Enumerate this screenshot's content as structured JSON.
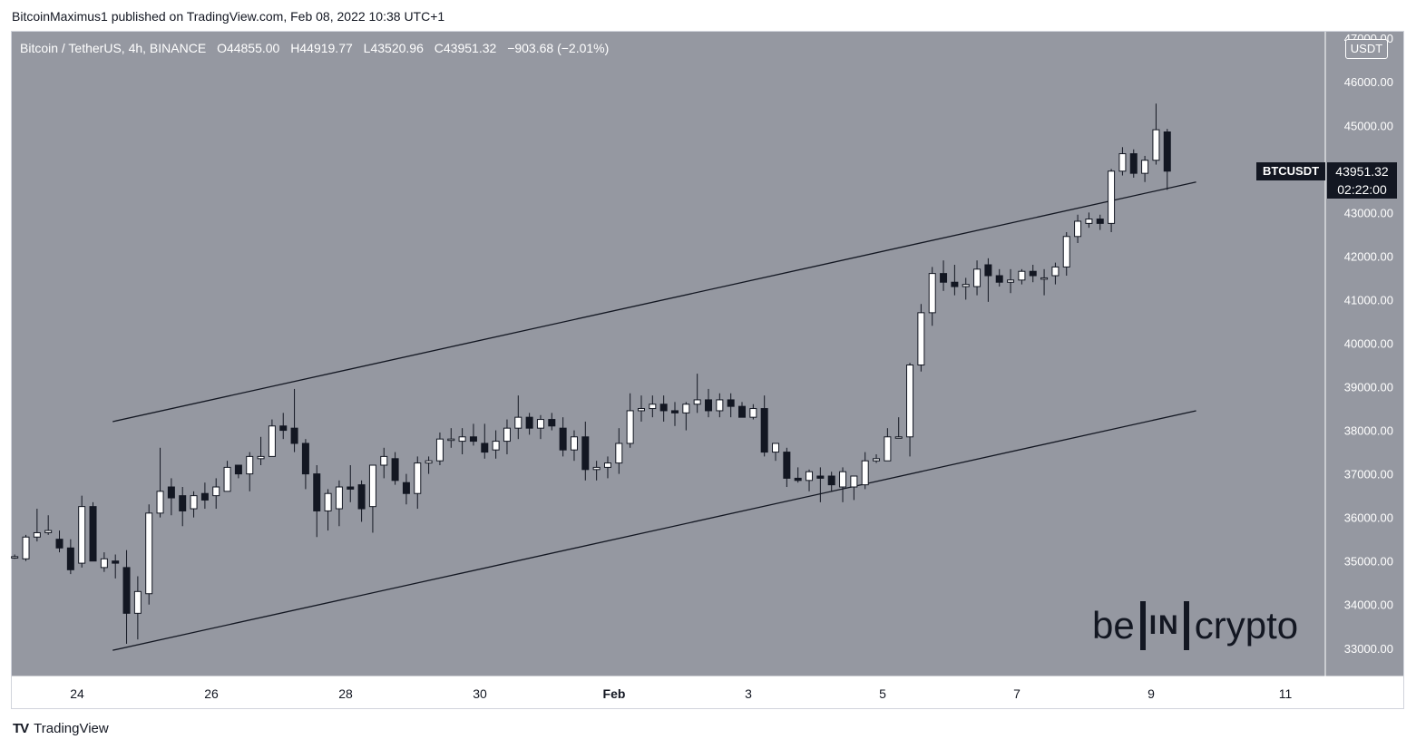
{
  "publisher_line": "BitcoinMaximus1 published on TradingView.com, Feb 08, 2022 10:38 UTC+1",
  "footer_brand": "TradingView",
  "watermark": {
    "left": "be",
    "box": "IN",
    "right": "crypto"
  },
  "header": {
    "instrument": "Bitcoin / TetherUS, 4h, BINANCE",
    "open_label": "O",
    "open": "44855.00",
    "high_label": "H",
    "high": "44919.77",
    "low_label": "L",
    "low": "43520.96",
    "close_label": "C",
    "close": "43951.32",
    "change": "−903.68 (−2.01%)"
  },
  "price_axis_unit": "USDT",
  "symbol_badge": "BTCUSDT",
  "last_price": "43951.32",
  "countdown": "02:22:00",
  "colors": {
    "background": "#9598a1",
    "bull_body": "#ffffff",
    "bear_body": "#131722",
    "wick": "#131722",
    "trendline": "#131722"
  },
  "chart_data": {
    "type": "candlestick",
    "timeframe": "4h",
    "y_ticks": [
      "47000.00",
      "46000.00",
      "45000.00",
      "44000.00",
      "43000.00",
      "42000.00",
      "41000.00",
      "40000.00",
      "39000.00",
      "38000.00",
      "37000.00",
      "36000.00",
      "35000.00",
      "34000.00",
      "33000.00"
    ],
    "ylim": [
      32350,
      47150
    ],
    "x_ticks": [
      {
        "label": "24",
        "day": 24
      },
      {
        "label": "26",
        "day": 26
      },
      {
        "label": "28",
        "day": 28
      },
      {
        "label": "30",
        "day": 30
      },
      {
        "label": "Feb",
        "day": 32
      },
      {
        "label": "3",
        "day": 34
      },
      {
        "label": "5",
        "day": 36
      },
      {
        "label": "7",
        "day": 38
      },
      {
        "label": "9",
        "day": 40
      },
      {
        "label": "11",
        "day": 42
      }
    ],
    "x_axis_note": "day index: Jan 24 = 24, Feb 1 = 32",
    "first_candle_day": 23.07,
    "candle_step_days": 0.1667,
    "candles": [
      [
        35100,
        35150,
        35050,
        35100
      ],
      [
        35050,
        35600,
        35000,
        35550
      ],
      [
        35550,
        36200,
        35450,
        35650
      ],
      [
        35650,
        36050,
        35600,
        35700
      ],
      [
        35500,
        35700,
        35200,
        35300
      ],
      [
        35300,
        35500,
        34700,
        34800
      ],
      [
        34950,
        36500,
        34850,
        36250
      ],
      [
        36250,
        36350,
        35050,
        35000
      ],
      [
        34850,
        35200,
        34750,
        35050
      ],
      [
        35000,
        35150,
        34600,
        34950
      ],
      [
        34850,
        35250,
        33100,
        33800
      ],
      [
        33800,
        34650,
        33200,
        34300
      ],
      [
        34250,
        36300,
        34000,
        36100
      ],
      [
        36100,
        37600,
        36000,
        36600
      ],
      [
        36700,
        36900,
        36050,
        36450
      ],
      [
        36500,
        36700,
        35800,
        36150
      ],
      [
        36200,
        36600,
        36000,
        36500
      ],
      [
        36550,
        36800,
        36200,
        36400
      ],
      [
        36500,
        36900,
        36200,
        36700
      ],
      [
        36600,
        37300,
        36600,
        37150
      ],
      [
        37200,
        37200,
        36900,
        37000
      ],
      [
        37000,
        37500,
        36600,
        37400
      ],
      [
        37350,
        37850,
        37200,
        37400
      ],
      [
        37400,
        38250,
        37400,
        38100
      ],
      [
        38100,
        38400,
        37800,
        38000
      ],
      [
        38050,
        38950,
        37500,
        37700
      ],
      [
        37700,
        37800,
        36650,
        37000
      ],
      [
        37000,
        37200,
        35550,
        36150
      ],
      [
        36150,
        36650,
        35700,
        36550
      ],
      [
        36200,
        36850,
        35800,
        36700
      ],
      [
        36700,
        37200,
        36350,
        36650
      ],
      [
        36750,
        36850,
        35900,
        36200
      ],
      [
        36250,
        37200,
        35650,
        37200
      ],
      [
        37200,
        37600,
        36900,
        37400
      ],
      [
        37350,
        37500,
        36750,
        36850
      ],
      [
        36800,
        37000,
        36300,
        36550
      ],
      [
        36550,
        37400,
        36200,
        37250
      ],
      [
        37250,
        37400,
        37000,
        37300
      ],
      [
        37300,
        37950,
        37200,
        37800
      ],
      [
        37800,
        38050,
        37600,
        37800
      ],
      [
        37750,
        38050,
        37450,
        37850
      ],
      [
        37850,
        38150,
        37650,
        37750
      ],
      [
        37700,
        38150,
        37350,
        37500
      ],
      [
        37550,
        38000,
        37350,
        37750
      ],
      [
        37750,
        38250,
        37450,
        38050
      ],
      [
        38050,
        38800,
        37800,
        38300
      ],
      [
        38300,
        38400,
        37900,
        38050
      ],
      [
        38050,
        38350,
        37800,
        38250
      ],
      [
        38250,
        38400,
        38000,
        38100
      ],
      [
        38050,
        38300,
        37400,
        37550
      ],
      [
        37550,
        38000,
        37300,
        37850
      ],
      [
        37850,
        38200,
        36850,
        37100
      ],
      [
        37100,
        37300,
        36850,
        37150
      ],
      [
        37150,
        37400,
        36900,
        37250
      ],
      [
        37250,
        38050,
        37000,
        37700
      ],
      [
        37700,
        38850,
        37600,
        38450
      ],
      [
        38450,
        38800,
        38200,
        38500
      ],
      [
        38500,
        38800,
        38300,
        38600
      ],
      [
        38600,
        38800,
        38200,
        38450
      ],
      [
        38450,
        38650,
        38100,
        38400
      ],
      [
        38400,
        38650,
        38000,
        38600
      ],
      [
        38600,
        39300,
        38400,
        38700
      ],
      [
        38700,
        38950,
        38300,
        38450
      ],
      [
        38450,
        38850,
        38300,
        38700
      ],
      [
        38700,
        38850,
        38300,
        38550
      ],
      [
        38550,
        38650,
        38300,
        38300
      ],
      [
        38300,
        38600,
        38250,
        38500
      ],
      [
        38500,
        38800,
        37400,
        37500
      ],
      [
        37500,
        37700,
        37300,
        37700
      ],
      [
        37500,
        37600,
        36700,
        36900
      ],
      [
        36900,
        37150,
        36800,
        36850
      ],
      [
        36850,
        37100,
        36600,
        37050
      ],
      [
        36950,
        37150,
        36350,
        36900
      ],
      [
        36950,
        37050,
        36600,
        36750
      ],
      [
        36700,
        37150,
        36350,
        37050
      ],
      [
        36700,
        36950,
        36400,
        36950
      ],
      [
        36750,
        37500,
        36650,
        37300
      ],
      [
        37300,
        37450,
        37250,
        37350
      ],
      [
        37300,
        38050,
        37300,
        37850
      ],
      [
        37850,
        38300,
        37850,
        37850
      ],
      [
        37850,
        39550,
        37400,
        39500
      ],
      [
        39500,
        40900,
        39350,
        40700
      ],
      [
        40700,
        41750,
        40400,
        41600
      ],
      [
        41600,
        41900,
        41200,
        41400
      ],
      [
        41400,
        41800,
        41100,
        41300
      ],
      [
        41300,
        41500,
        41000,
        41350
      ],
      [
        41300,
        41900,
        41100,
        41700
      ],
      [
        41800,
        41950,
        40950,
        41550
      ],
      [
        41550,
        41700,
        41300,
        41400
      ],
      [
        41400,
        41700,
        41150,
        41450
      ],
      [
        41450,
        41700,
        41350,
        41650
      ],
      [
        41650,
        41800,
        41400,
        41550
      ],
      [
        41500,
        41700,
        41100,
        41500
      ],
      [
        41550,
        41850,
        41350,
        41750
      ],
      [
        41750,
        42550,
        41550,
        42450
      ],
      [
        42450,
        42950,
        42300,
        42800
      ],
      [
        42750,
        43000,
        42650,
        42850
      ],
      [
        42850,
        42950,
        42600,
        42750
      ],
      [
        42750,
        44000,
        42550,
        43950
      ],
      [
        43950,
        44500,
        43850,
        44350
      ],
      [
        44350,
        44450,
        43800,
        43900
      ],
      [
        43900,
        44300,
        43700,
        44200
      ],
      [
        44200,
        45500,
        44100,
        44900
      ],
      [
        44850,
        44920,
        43520,
        43950
      ]
    ],
    "trendlines": [
      {
        "name": "upper channel",
        "points": [
          [
            24.53,
            38200
          ],
          [
            40.67,
            43700
          ]
        ]
      },
      {
        "name": "lower channel",
        "points": [
          [
            24.53,
            32950
          ],
          [
            40.67,
            38450
          ]
        ]
      }
    ]
  }
}
